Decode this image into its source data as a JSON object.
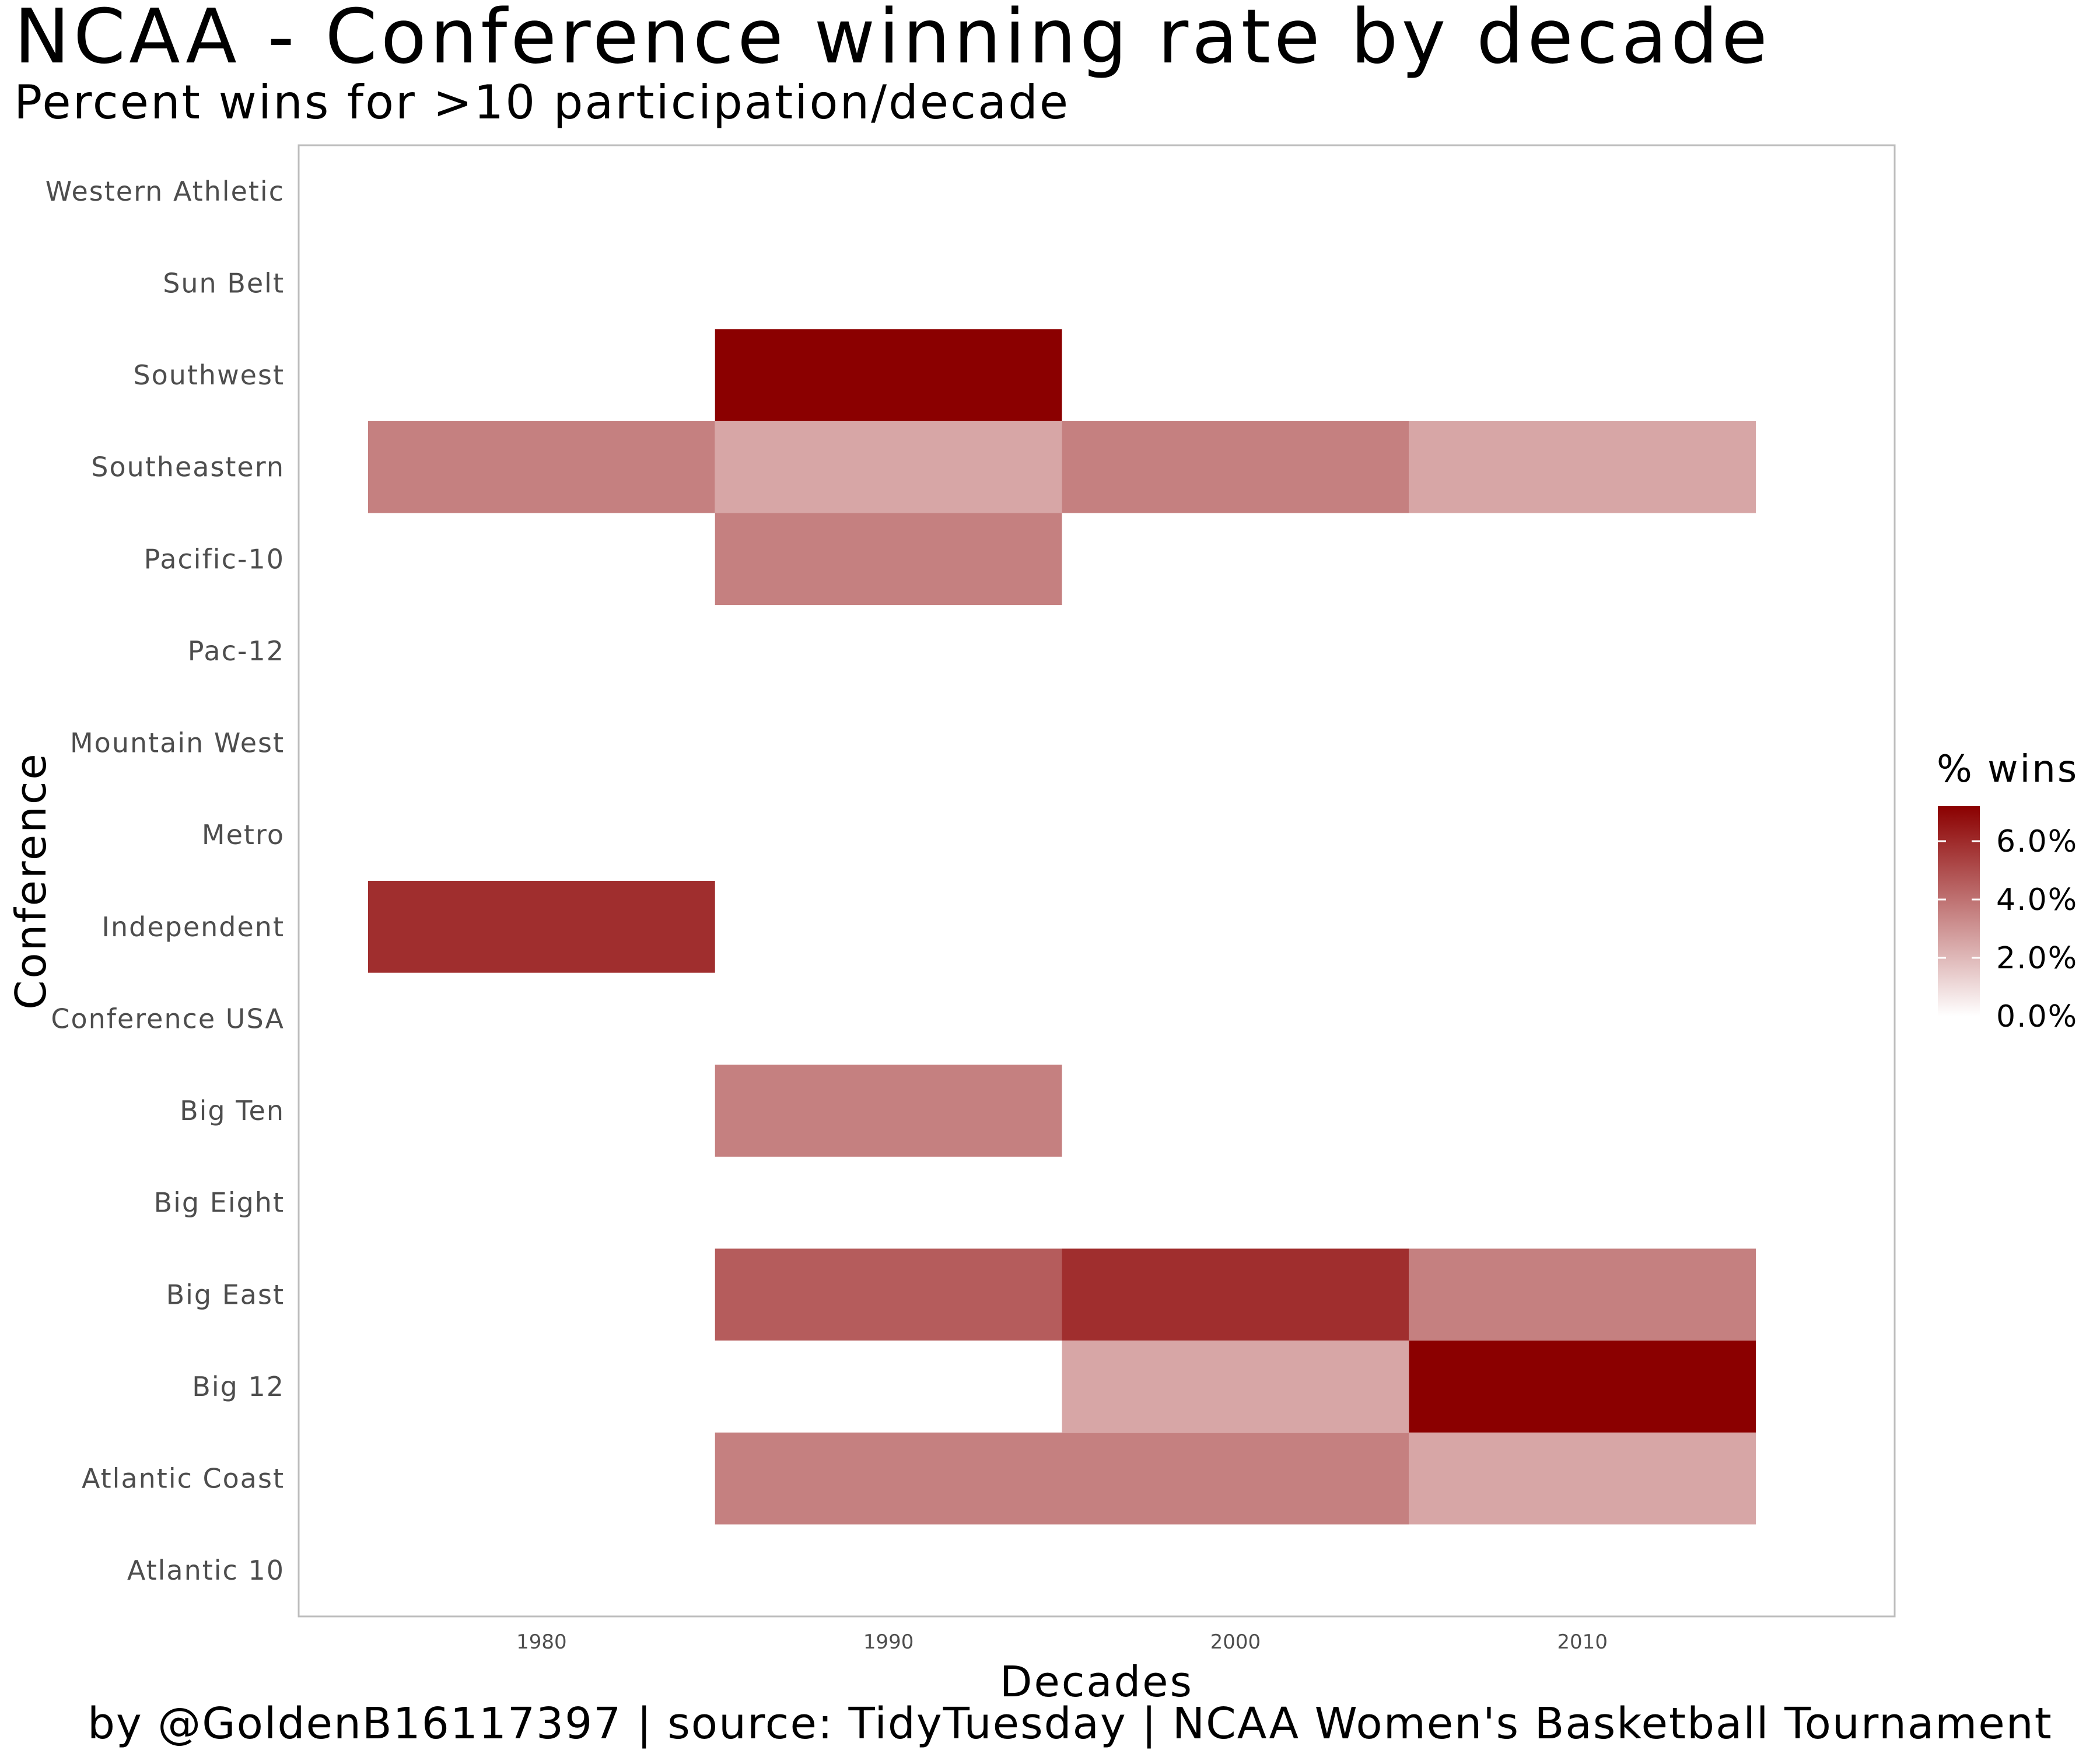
{
  "title": "NCAA - Conference winning rate by decade",
  "subtitle": "Percent wins for >10 participation/decade",
  "caption": "by @GoldenB16117397 | source: TidyTuesday | NCAA Women's Basketball Tournament",
  "colors": {
    "low": "#ffffff",
    "high": "#8b0000",
    "panel_border": "#bdbdbd"
  },
  "chart_data": {
    "type": "heatmap",
    "xlabel": "Decades",
    "ylabel": "Conference",
    "x": [
      1980,
      1990,
      2000,
      2010
    ],
    "x_tick_labels": [
      "1980",
      "1990",
      "2000",
      "2010"
    ],
    "xlim": [
      1973,
      2019
    ],
    "y": [
      "Atlantic 10",
      "Atlantic Coast",
      "Big 12",
      "Big East",
      "Big Eight",
      "Big Ten",
      "Conference USA",
      "Independent",
      "Metro",
      "Mountain West",
      "Pac-12",
      "Pacific-10",
      "Southeastern",
      "Southwest",
      "Sun Belt",
      "Western Athletic"
    ],
    "cells": [
      {
        "conference": "Atlantic Coast",
        "decade": 1990,
        "value": 3.6
      },
      {
        "conference": "Atlantic Coast",
        "decade": 2000,
        "value": 3.6
      },
      {
        "conference": "Atlantic Coast",
        "decade": 2010,
        "value": 2.5
      },
      {
        "conference": "Big 12",
        "decade": 2000,
        "value": 2.5
      },
      {
        "conference": "Big 12",
        "decade": 2010,
        "value": 7.2
      },
      {
        "conference": "Big East",
        "decade": 1990,
        "value": 4.6
      },
      {
        "conference": "Big East",
        "decade": 2000,
        "value": 5.9
      },
      {
        "conference": "Big East",
        "decade": 2010,
        "value": 3.6
      },
      {
        "conference": "Big Ten",
        "decade": 1990,
        "value": 3.6
      },
      {
        "conference": "Independent",
        "decade": 1980,
        "value": 5.9
      },
      {
        "conference": "Pacific-10",
        "decade": 1990,
        "value": 3.6
      },
      {
        "conference": "Southeastern",
        "decade": 1980,
        "value": 3.6
      },
      {
        "conference": "Southeastern",
        "decade": 1990,
        "value": 2.5
      },
      {
        "conference": "Southeastern",
        "decade": 2000,
        "value": 3.6
      },
      {
        "conference": "Southeastern",
        "decade": 2010,
        "value": 2.5
      },
      {
        "conference": "Southwest",
        "decade": 1990,
        "value": 7.2
      }
    ],
    "legend": {
      "title": "% wins",
      "placement": "right",
      "breaks": [
        0,
        2,
        4,
        6
      ],
      "break_labels": [
        "0.0%",
        "2.0%",
        "4.0%",
        "6.0%"
      ],
      "min": 0,
      "max": 7.2
    }
  }
}
